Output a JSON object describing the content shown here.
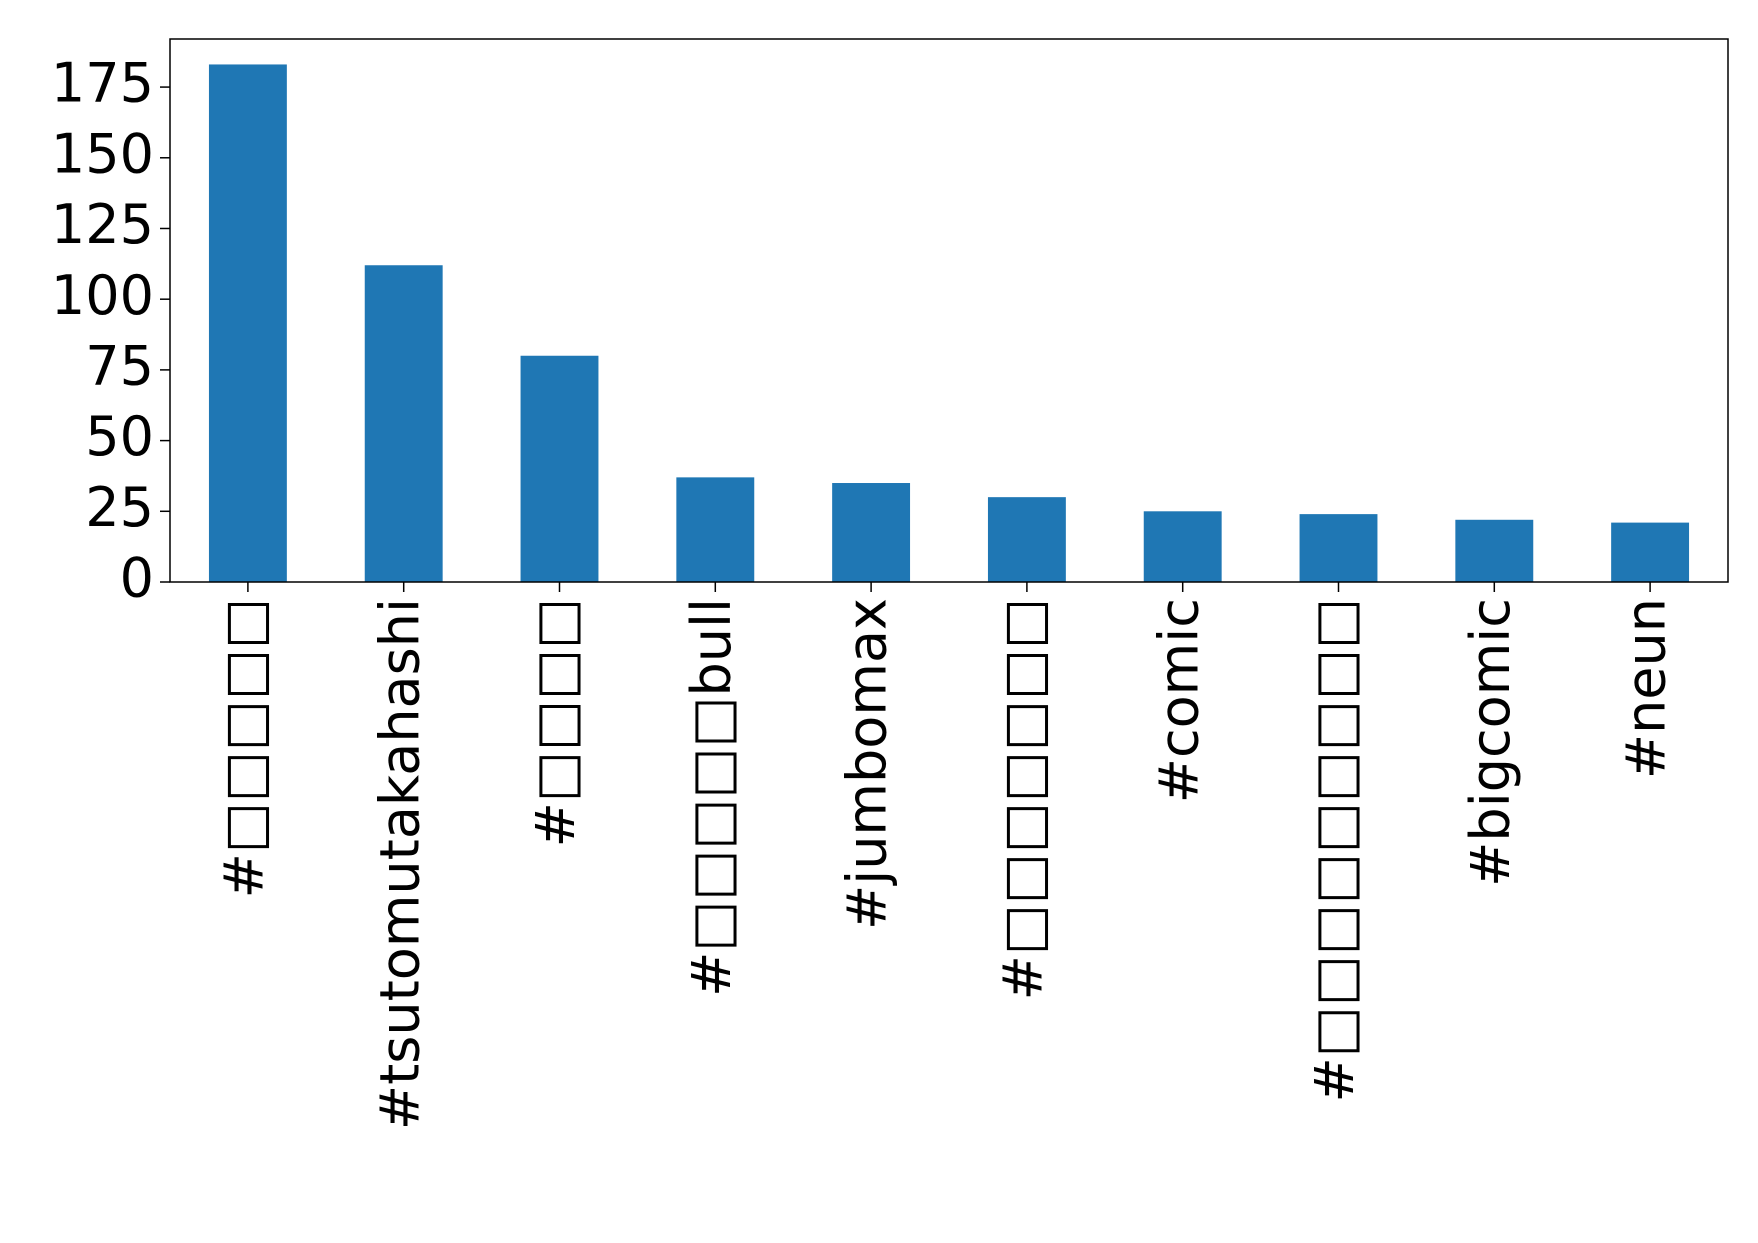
{
  "chart_data": {
    "type": "bar",
    "categories": [
      "#□□□□□",
      "#tsutomutakahashi",
      "#□□□□",
      "#□□□□□bull",
      "#jumbomax",
      "#□□□□□□□",
      "#comic",
      "#□□□□□□□□□",
      "#bigcomic",
      "#neun"
    ],
    "values": [
      183,
      112,
      80,
      37,
      35,
      30,
      25,
      24,
      22,
      21
    ],
    "color": "#1f77b4",
    "ylim": [
      0,
      192
    ],
    "yticks": [
      0,
      25,
      50,
      75,
      100,
      125,
      150,
      175
    ]
  }
}
